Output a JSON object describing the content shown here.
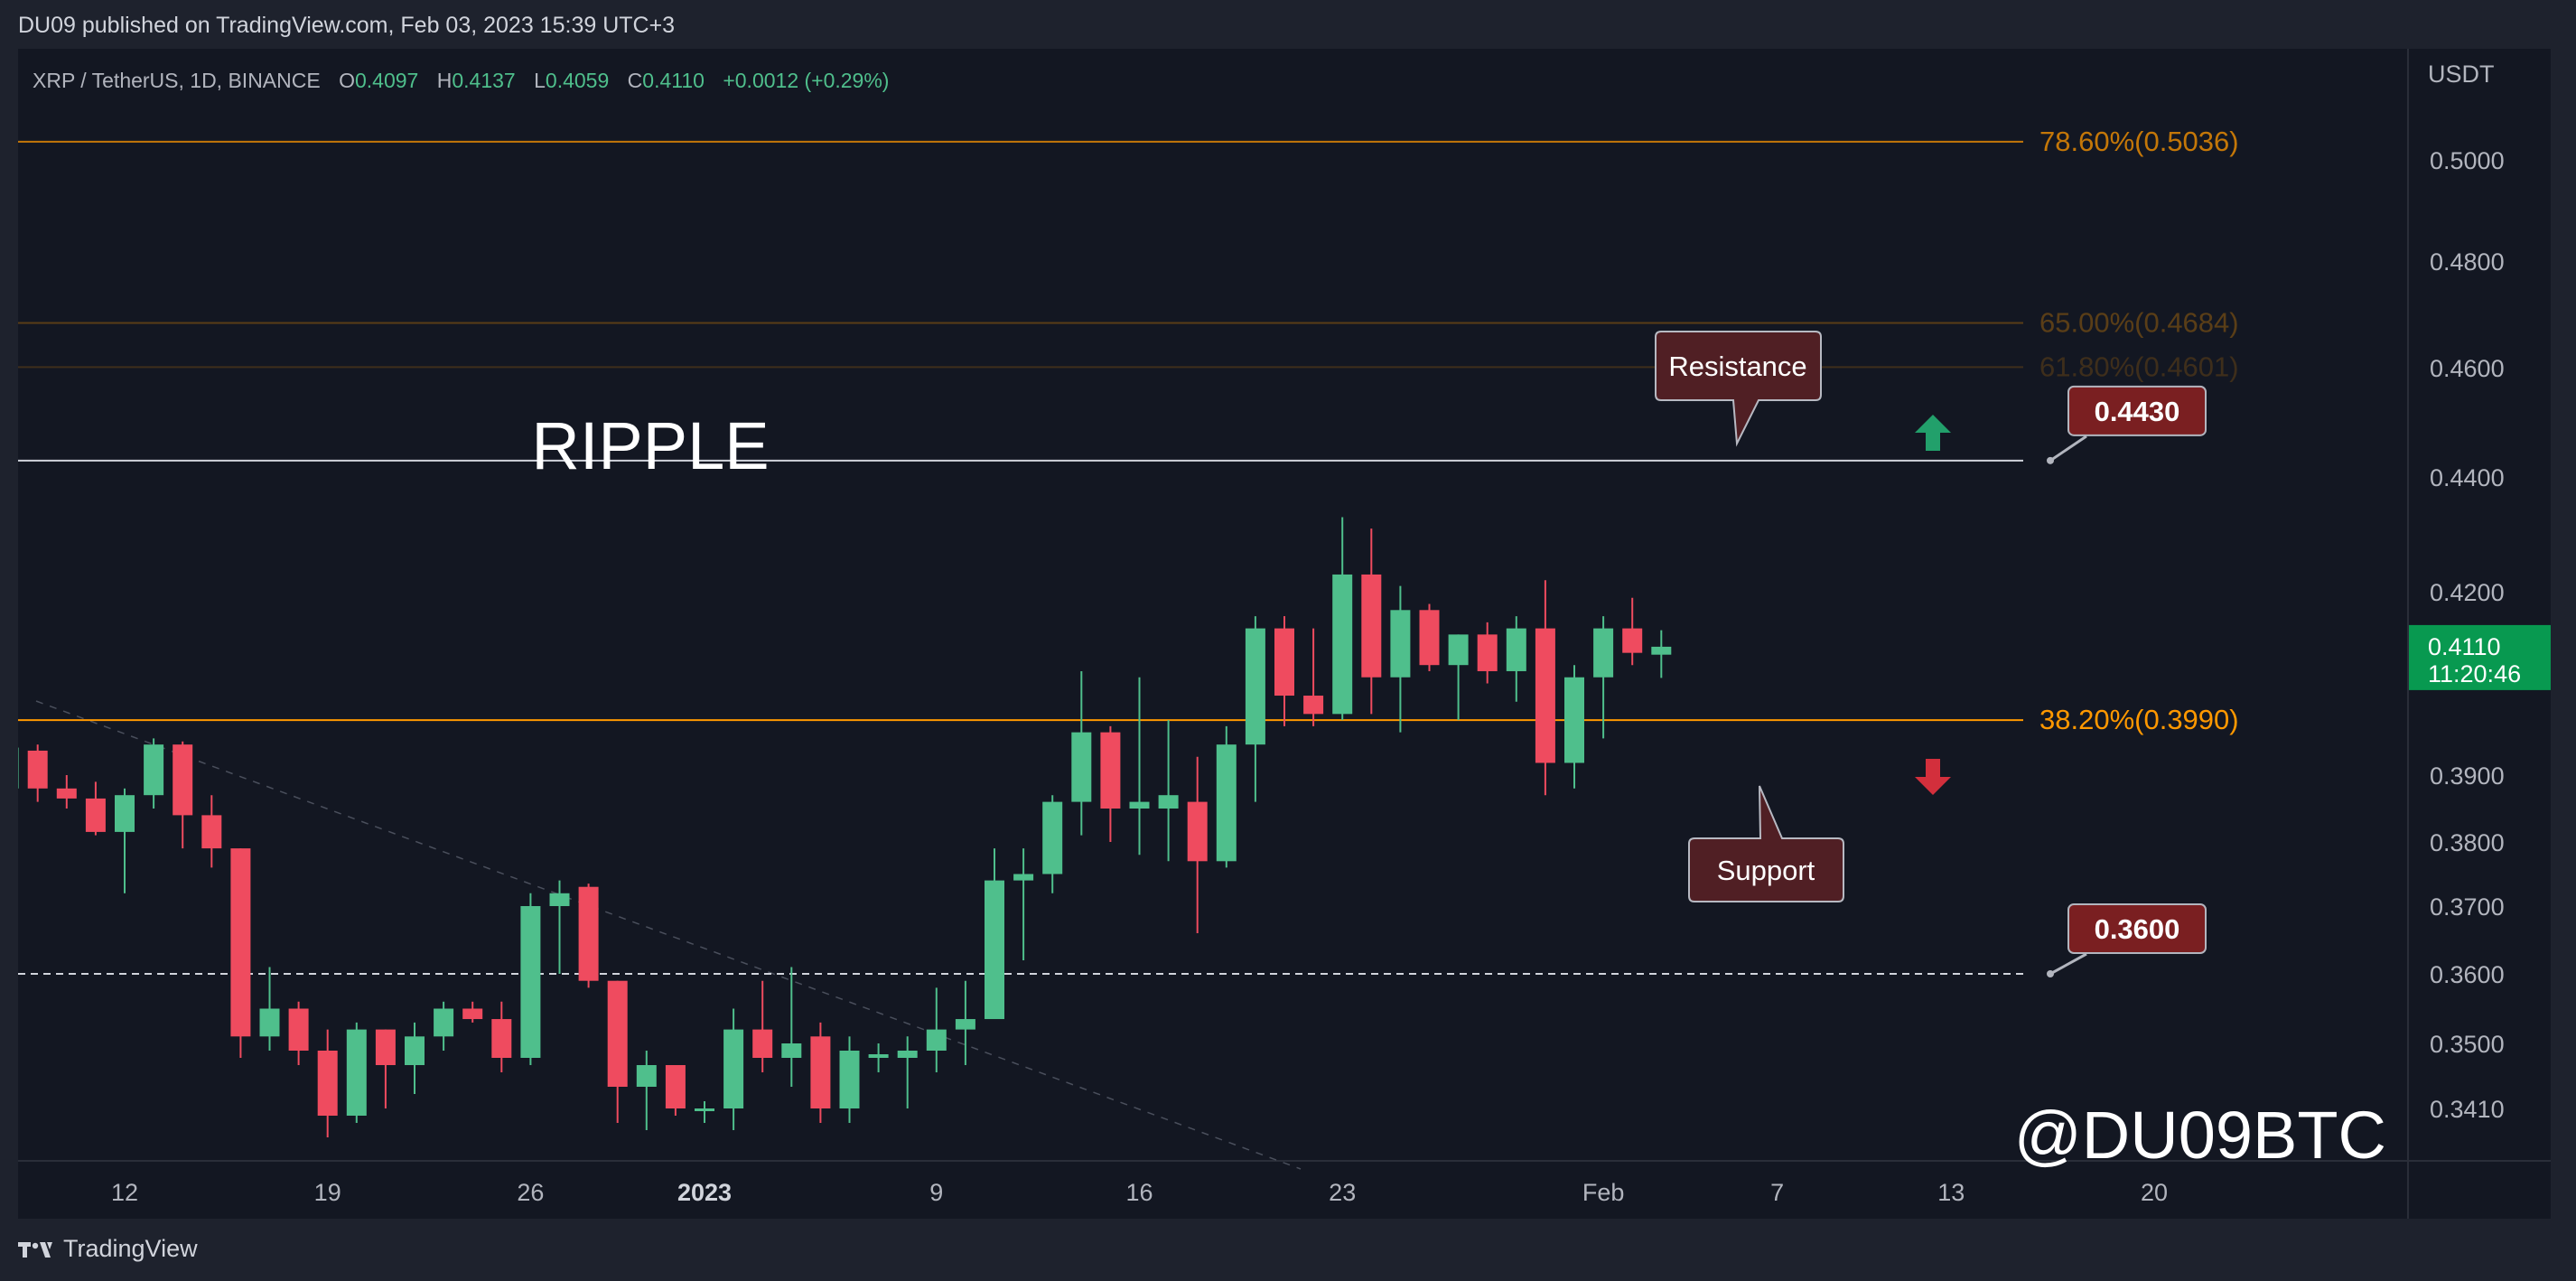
{
  "header": {
    "publisher": "DU09 published on TradingView.com, Feb 03, 2023 15:39 UTC+3"
  },
  "legend": {
    "symbol": "XRP / TetherUS, 1D, BINANCE",
    "o_label": "O",
    "o_value": "0.4097",
    "h_label": "H",
    "h_value": "0.4137",
    "l_label": "L",
    "l_value": "0.4059",
    "c_label": "C",
    "c_value": "0.4110",
    "change": "+0.0012 (+0.29%)"
  },
  "footer": {
    "brand": "TradingView"
  },
  "colors": {
    "up": "#4fbf8c",
    "down": "#ef4b5f",
    "fib": "#ff9800",
    "bg": "#131722",
    "panel": "#1e222d",
    "text": "#b2b5be",
    "callout": "#7a1f21"
  },
  "chart_data": {
    "type": "candlestick",
    "symbol": "XRP / TetherUS",
    "interval": "1D",
    "exchange": "BINANCE",
    "currency": "USDT",
    "price_range": [
      0.337,
      0.516
    ],
    "y_ticks": [
      "0.5000",
      "0.4800",
      "0.4600",
      "0.4400",
      "0.4200",
      "0.3900",
      "0.3800",
      "0.3700",
      "0.3600",
      "0.3500",
      "0.3410"
    ],
    "x_ticks": [
      {
        "label": "12",
        "day": 12,
        "bold": false
      },
      {
        "label": "19",
        "day": 19,
        "bold": false
      },
      {
        "label": "26",
        "day": 26,
        "bold": false
      },
      {
        "label": "2023",
        "day": 32,
        "bold": true
      },
      {
        "label": "9",
        "day": 40,
        "bold": false
      },
      {
        "label": "16",
        "day": 47,
        "bold": false
      },
      {
        "label": "23",
        "day": 54,
        "bold": false
      },
      {
        "label": "Feb",
        "day": 63,
        "bold": false
      },
      {
        "label": "7",
        "day": 69,
        "bold": false
      },
      {
        "label": "13",
        "day": 75,
        "bold": false
      },
      {
        "label": "20",
        "day": 82,
        "bold": false
      }
    ],
    "candles": [
      {
        "day": 8,
        "o": 0.388,
        "h": 0.395,
        "l": 0.384,
        "c": 0.3945
      },
      {
        "day": 9,
        "o": 0.394,
        "h": 0.395,
        "l": 0.386,
        "c": 0.388
      },
      {
        "day": 10,
        "o": 0.388,
        "h": 0.39,
        "l": 0.385,
        "c": 0.3865
      },
      {
        "day": 11,
        "o": 0.3865,
        "h": 0.389,
        "l": 0.381,
        "c": 0.3815
      },
      {
        "day": 12,
        "o": 0.3815,
        "h": 0.388,
        "l": 0.372,
        "c": 0.387
      },
      {
        "day": 13,
        "o": 0.387,
        "h": 0.396,
        "l": 0.385,
        "c": 0.395
      },
      {
        "day": 14,
        "o": 0.395,
        "h": 0.3955,
        "l": 0.379,
        "c": 0.384
      },
      {
        "day": 15,
        "o": 0.384,
        "h": 0.387,
        "l": 0.376,
        "c": 0.379
      },
      {
        "day": 16,
        "o": 0.379,
        "h": 0.379,
        "l": 0.348,
        "c": 0.351
      },
      {
        "day": 17,
        "o": 0.351,
        "h": 0.361,
        "l": 0.349,
        "c": 0.355
      },
      {
        "day": 18,
        "o": 0.355,
        "h": 0.356,
        "l": 0.347,
        "c": 0.349
      },
      {
        "day": 19,
        "o": 0.349,
        "h": 0.352,
        "l": 0.337,
        "c": 0.34
      },
      {
        "day": 20,
        "o": 0.34,
        "h": 0.353,
        "l": 0.339,
        "c": 0.352
      },
      {
        "day": 21,
        "o": 0.352,
        "h": 0.352,
        "l": 0.341,
        "c": 0.347
      },
      {
        "day": 22,
        "o": 0.347,
        "h": 0.353,
        "l": 0.343,
        "c": 0.351
      },
      {
        "day": 23,
        "o": 0.351,
        "h": 0.356,
        "l": 0.349,
        "c": 0.355
      },
      {
        "day": 24,
        "o": 0.355,
        "h": 0.356,
        "l": 0.353,
        "c": 0.3535
      },
      {
        "day": 25,
        "o": 0.3535,
        "h": 0.356,
        "l": 0.346,
        "c": 0.348
      },
      {
        "day": 26,
        "o": 0.348,
        "h": 0.372,
        "l": 0.347,
        "c": 0.37
      },
      {
        "day": 27,
        "o": 0.37,
        "h": 0.374,
        "l": 0.36,
        "c": 0.372
      },
      {
        "day": 28,
        "o": 0.373,
        "h": 0.3735,
        "l": 0.358,
        "c": 0.359
      },
      {
        "day": 29,
        "o": 0.359,
        "h": 0.359,
        "l": 0.339,
        "c": 0.344
      },
      {
        "day": 30,
        "o": 0.344,
        "h": 0.349,
        "l": 0.338,
        "c": 0.347
      },
      {
        "day": 31,
        "o": 0.347,
        "h": 0.347,
        "l": 0.34,
        "c": 0.341
      },
      {
        "day": 32,
        "o": 0.341,
        "h": 0.342,
        "l": 0.339,
        "c": 0.341
      },
      {
        "day": 33,
        "o": 0.341,
        "h": 0.355,
        "l": 0.338,
        "c": 0.352
      },
      {
        "day": 34,
        "o": 0.352,
        "h": 0.359,
        "l": 0.346,
        "c": 0.348
      },
      {
        "day": 35,
        "o": 0.348,
        "h": 0.361,
        "l": 0.344,
        "c": 0.35
      },
      {
        "day": 36,
        "o": 0.351,
        "h": 0.353,
        "l": 0.339,
        "c": 0.341
      },
      {
        "day": 37,
        "o": 0.341,
        "h": 0.351,
        "l": 0.339,
        "c": 0.349
      },
      {
        "day": 38,
        "o": 0.348,
        "h": 0.35,
        "l": 0.346,
        "c": 0.3485
      },
      {
        "day": 39,
        "o": 0.348,
        "h": 0.351,
        "l": 0.341,
        "c": 0.349
      },
      {
        "day": 40,
        "o": 0.349,
        "h": 0.358,
        "l": 0.346,
        "c": 0.352
      },
      {
        "day": 41,
        "o": 0.352,
        "h": 0.359,
        "l": 0.347,
        "c": 0.3535
      },
      {
        "day": 42,
        "o": 0.3535,
        "h": 0.379,
        "l": 0.3535,
        "c": 0.374
      },
      {
        "day": 43,
        "o": 0.374,
        "h": 0.379,
        "l": 0.362,
        "c": 0.375
      },
      {
        "day": 44,
        "o": 0.375,
        "h": 0.387,
        "l": 0.372,
        "c": 0.386
      },
      {
        "day": 45,
        "o": 0.386,
        "h": 0.407,
        "l": 0.381,
        "c": 0.397
      },
      {
        "day": 46,
        "o": 0.397,
        "h": 0.398,
        "l": 0.38,
        "c": 0.385
      },
      {
        "day": 47,
        "o": 0.385,
        "h": 0.406,
        "l": 0.378,
        "c": 0.386
      },
      {
        "day": 48,
        "o": 0.385,
        "h": 0.399,
        "l": 0.377,
        "c": 0.387
      },
      {
        "day": 49,
        "o": 0.386,
        "h": 0.393,
        "l": 0.366,
        "c": 0.377
      },
      {
        "day": 50,
        "o": 0.377,
        "h": 0.398,
        "l": 0.376,
        "c": 0.395
      },
      {
        "day": 51,
        "o": 0.395,
        "h": 0.416,
        "l": 0.386,
        "c": 0.414
      },
      {
        "day": 52,
        "o": 0.414,
        "h": 0.416,
        "l": 0.398,
        "c": 0.403
      },
      {
        "day": 53,
        "o": 0.403,
        "h": 0.414,
        "l": 0.398,
        "c": 0.4
      },
      {
        "day": 54,
        "o": 0.4,
        "h": 0.433,
        "l": 0.399,
        "c": 0.423
      },
      {
        "day": 55,
        "o": 0.423,
        "h": 0.431,
        "l": 0.4,
        "c": 0.406
      },
      {
        "day": 56,
        "o": 0.406,
        "h": 0.421,
        "l": 0.397,
        "c": 0.417
      },
      {
        "day": 57,
        "o": 0.417,
        "h": 0.418,
        "l": 0.407,
        "c": 0.408
      },
      {
        "day": 58,
        "o": 0.408,
        "h": 0.413,
        "l": 0.399,
        "c": 0.413
      },
      {
        "day": 59,
        "o": 0.413,
        "h": 0.415,
        "l": 0.405,
        "c": 0.407
      },
      {
        "day": 60,
        "o": 0.407,
        "h": 0.416,
        "l": 0.402,
        "c": 0.414
      },
      {
        "day": 61,
        "o": 0.414,
        "h": 0.422,
        "l": 0.387,
        "c": 0.392
      },
      {
        "day": 62,
        "o": 0.392,
        "h": 0.408,
        "l": 0.388,
        "c": 0.406
      },
      {
        "day": 63,
        "o": 0.406,
        "h": 0.416,
        "l": 0.396,
        "c": 0.414
      },
      {
        "day": 64,
        "o": 0.414,
        "h": 0.419,
        "l": 0.408,
        "c": 0.41
      },
      {
        "day": 65,
        "o": 0.4097,
        "h": 0.4137,
        "l": 0.4059,
        "c": 0.411
      }
    ],
    "fib_levels": [
      {
        "label": "78.60%(0.5036)",
        "price": 0.5036,
        "opacity": 0.75
      },
      {
        "label": "65.00%(0.4684)",
        "price": 0.4684,
        "opacity": 0.3
      },
      {
        "label": "61.80%(0.4601)",
        "price": 0.4601,
        "opacity": 0.18
      },
      {
        "label": "38.20%(0.3990)",
        "price": 0.399,
        "opacity": 1
      }
    ],
    "horizontal_lines": [
      {
        "price": 0.443,
        "style": "solid",
        "color": "#d1d4dc"
      },
      {
        "price": 0.36,
        "style": "dashed",
        "color": "#d1d4dc"
      }
    ],
    "price_callouts": [
      {
        "label": "0.4430",
        "price": 0.443
      },
      {
        "label": "0.3600",
        "price": 0.36
      }
    ],
    "annotations": [
      {
        "text": "RIPPLE",
        "kind": "title"
      },
      {
        "text": "Resistance",
        "kind": "callout-down"
      },
      {
        "text": "Support",
        "kind": "callout-up"
      },
      {
        "text": "@DU09BTC",
        "kind": "watermark"
      }
    ],
    "current_price": {
      "value": "0.4110",
      "countdown": "11:20:46"
    },
    "grid": false
  }
}
